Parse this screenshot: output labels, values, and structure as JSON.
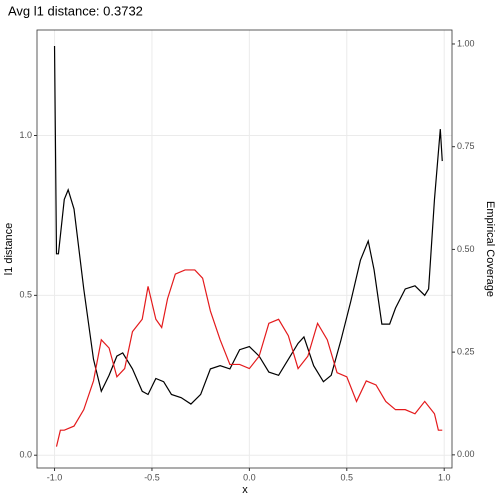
{
  "chart_data": {
    "type": "line",
    "title": "Avg l1 distance: 0.3732",
    "x_label": "x",
    "y_label": "l1 distance",
    "y2_label": "Empirical Coverage",
    "xlim": [
      -1.09,
      1.04
    ],
    "ylim": [
      -0.04,
      1.33
    ],
    "y2lim": [
      -0.032,
      1.034
    ],
    "xticks": [
      {
        "value": -1,
        "label": "-1.0"
      },
      -0.5,
      {
        "value": 0,
        "label": "0.0"
      },
      0.5,
      {
        "value": 1,
        "label": "1.0"
      }
    ],
    "yticks": [
      {
        "value": 0,
        "label": "0.0"
      },
      0.5,
      {
        "value": 1,
        "label": "1.0"
      }
    ],
    "y2ticks": [
      {
        "value": 0,
        "label": "0.00"
      },
      0.25,
      {
        "value": 0.5,
        "label": "0.50"
      },
      0.75,
      {
        "value": 1,
        "label": "1.00"
      }
    ],
    "grid": true,
    "series": [
      {
        "color": "#000000",
        "x": [
          -1.0,
          -0.99,
          -0.98,
          -0.95,
          -0.93,
          -0.9,
          -0.85,
          -0.8,
          -0.76,
          -0.72,
          -0.68,
          -0.65,
          -0.6,
          -0.55,
          -0.52,
          -0.48,
          -0.44,
          -0.4,
          -0.35,
          -0.3,
          -0.25,
          -0.2,
          -0.15,
          -0.1,
          -0.05,
          0.0,
          0.05,
          0.1,
          0.15,
          0.2,
          0.25,
          0.28,
          0.33,
          0.38,
          0.42,
          0.47,
          0.52,
          0.57,
          0.61,
          0.64,
          0.68,
          0.72,
          0.75,
          0.8,
          0.85,
          0.9,
          0.92,
          0.95,
          0.98,
          0.99
        ],
        "values": [
          1.28,
          0.63,
          0.63,
          0.8,
          0.83,
          0.77,
          0.52,
          0.3,
          0.2,
          0.25,
          0.31,
          0.32,
          0.27,
          0.2,
          0.19,
          0.24,
          0.23,
          0.19,
          0.18,
          0.16,
          0.19,
          0.27,
          0.28,
          0.27,
          0.33,
          0.34,
          0.31,
          0.26,
          0.25,
          0.3,
          0.35,
          0.37,
          0.28,
          0.23,
          0.25,
          0.36,
          0.48,
          0.61,
          0.67,
          0.58,
          0.41,
          0.41,
          0.46,
          0.52,
          0.53,
          0.5,
          0.52,
          0.8,
          1.02,
          0.92
        ]
      },
      {
        "color": "#e41a1c",
        "axis": "y2",
        "x": [
          -0.99,
          -0.97,
          -0.95,
          -0.9,
          -0.85,
          -0.8,
          -0.76,
          -0.72,
          -0.68,
          -0.64,
          -0.6,
          -0.55,
          -0.52,
          -0.48,
          -0.45,
          -0.42,
          -0.38,
          -0.33,
          -0.28,
          -0.24,
          -0.2,
          -0.15,
          -0.1,
          -0.05,
          0.0,
          0.05,
          0.1,
          0.15,
          0.2,
          0.25,
          0.3,
          0.35,
          0.4,
          0.45,
          0.5,
          0.55,
          0.6,
          0.65,
          0.7,
          0.75,
          0.8,
          0.85,
          0.9,
          0.95,
          0.97,
          0.99
        ],
        "values": [
          0.02,
          0.06,
          0.06,
          0.07,
          0.11,
          0.18,
          0.28,
          0.26,
          0.19,
          0.21,
          0.3,
          0.33,
          0.41,
          0.33,
          0.31,
          0.38,
          0.44,
          0.45,
          0.45,
          0.43,
          0.35,
          0.28,
          0.22,
          0.22,
          0.21,
          0.24,
          0.32,
          0.33,
          0.29,
          0.21,
          0.24,
          0.32,
          0.28,
          0.2,
          0.19,
          0.13,
          0.18,
          0.17,
          0.13,
          0.11,
          0.11,
          0.1,
          0.13,
          0.1,
          0.06,
          0.06
        ]
      }
    ]
  }
}
